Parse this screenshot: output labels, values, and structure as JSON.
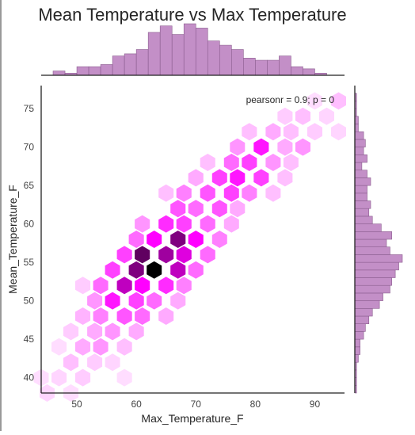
{
  "chart_data": {
    "type": "hexbin",
    "title": "Mean Temperature vs Max Temperature",
    "xlabel": "Max_Temperature_F",
    "ylabel": "Mean_Temperature_F",
    "xlim": [
      44,
      95
    ],
    "ylim": [
      38,
      78
    ],
    "xticks": [
      50,
      60,
      70,
      80,
      90
    ],
    "yticks": [
      40,
      45,
      50,
      55,
      60,
      65,
      70,
      75
    ],
    "annotation": "pearsonr = 0.9; p = 0",
    "colors": {
      "hex_base": "#ff00ff",
      "hex_dark": "#000000",
      "marginal": "#c38fc7",
      "marginal_edge": "#8a5c8e"
    },
    "hexbins": [
      {
        "x": 45,
        "y": 38,
        "c": 0.1
      },
      {
        "x": 49,
        "y": 38,
        "c": 0.08
      },
      {
        "x": 44,
        "y": 40,
        "c": 0.08
      },
      {
        "x": 47,
        "y": 40,
        "c": 0.1
      },
      {
        "x": 51,
        "y": 40,
        "c": 0.12
      },
      {
        "x": 49,
        "y": 42,
        "c": 0.15
      },
      {
        "x": 53,
        "y": 42,
        "c": 0.12
      },
      {
        "x": 56,
        "y": 42,
        "c": 0.1
      },
      {
        "x": 51,
        "y": 44,
        "c": 0.2
      },
      {
        "x": 54,
        "y": 44,
        "c": 0.25
      },
      {
        "x": 58,
        "y": 44,
        "c": 0.15
      },
      {
        "x": 49,
        "y": 46,
        "c": 0.12
      },
      {
        "x": 53,
        "y": 46,
        "c": 0.2
      },
      {
        "x": 56,
        "y": 46,
        "c": 0.25
      },
      {
        "x": 60,
        "y": 46,
        "c": 0.2
      },
      {
        "x": 51,
        "y": 48,
        "c": 0.18
      },
      {
        "x": 54,
        "y": 48,
        "c": 0.3
      },
      {
        "x": 58,
        "y": 48,
        "c": 0.4
      },
      {
        "x": 61,
        "y": 48,
        "c": 0.35
      },
      {
        "x": 65,
        "y": 48,
        "c": 0.2
      },
      {
        "x": 53,
        "y": 50,
        "c": 0.25
      },
      {
        "x": 56,
        "y": 50,
        "c": 0.55
      },
      {
        "x": 60,
        "y": 50,
        "c": 0.45
      },
      {
        "x": 63,
        "y": 50,
        "c": 0.35
      },
      {
        "x": 67,
        "y": 50,
        "c": 0.2
      },
      {
        "x": 54,
        "y": 52,
        "c": 0.35
      },
      {
        "x": 58,
        "y": 52,
        "c": 0.7
      },
      {
        "x": 61,
        "y": 52,
        "c": 0.6
      },
      {
        "x": 65,
        "y": 52,
        "c": 0.5
      },
      {
        "x": 68,
        "y": 52,
        "c": 0.3
      },
      {
        "x": 56,
        "y": 54,
        "c": 0.45
      },
      {
        "x": 60,
        "y": 54,
        "c": 0.8
      },
      {
        "x": 63,
        "y": 54,
        "c": 1.0
      },
      {
        "x": 67,
        "y": 54,
        "c": 0.7
      },
      {
        "x": 70,
        "y": 54,
        "c": 0.35
      },
      {
        "x": 58,
        "y": 56,
        "c": 0.45
      },
      {
        "x": 61,
        "y": 56,
        "c": 0.85
      },
      {
        "x": 65,
        "y": 56,
        "c": 0.75
      },
      {
        "x": 68,
        "y": 56,
        "c": 0.65
      },
      {
        "x": 72,
        "y": 56,
        "c": 0.35
      },
      {
        "x": 60,
        "y": 58,
        "c": 0.35
      },
      {
        "x": 63,
        "y": 58,
        "c": 0.6
      },
      {
        "x": 67,
        "y": 58,
        "c": 0.8
      },
      {
        "x": 70,
        "y": 58,
        "c": 0.6
      },
      {
        "x": 74,
        "y": 58,
        "c": 0.3
      },
      {
        "x": 61,
        "y": 60,
        "c": 0.25
      },
      {
        "x": 65,
        "y": 60,
        "c": 0.5
      },
      {
        "x": 68,
        "y": 60,
        "c": 0.45
      },
      {
        "x": 72,
        "y": 60,
        "c": 0.35
      },
      {
        "x": 76,
        "y": 60,
        "c": 0.2
      },
      {
        "x": 67,
        "y": 62,
        "c": 0.4
      },
      {
        "x": 70,
        "y": 62,
        "c": 0.35
      },
      {
        "x": 74,
        "y": 62,
        "c": 0.4
      },
      {
        "x": 77,
        "y": 62,
        "c": 0.2
      },
      {
        "x": 68,
        "y": 64,
        "c": 0.3
      },
      {
        "x": 72,
        "y": 64,
        "c": 0.4
      },
      {
        "x": 76,
        "y": 64,
        "c": 0.45
      },
      {
        "x": 79,
        "y": 64,
        "c": 0.3
      },
      {
        "x": 83,
        "y": 64,
        "c": 0.15
      },
      {
        "x": 70,
        "y": 66,
        "c": 0.2
      },
      {
        "x": 74,
        "y": 66,
        "c": 0.45
      },
      {
        "x": 77,
        "y": 66,
        "c": 0.55
      },
      {
        "x": 81,
        "y": 66,
        "c": 0.45
      },
      {
        "x": 85,
        "y": 66,
        "c": 0.15
      },
      {
        "x": 76,
        "y": 68,
        "c": 0.35
      },
      {
        "x": 79,
        "y": 68,
        "c": 0.45
      },
      {
        "x": 83,
        "y": 68,
        "c": 0.25
      },
      {
        "x": 86,
        "y": 68,
        "c": 0.15
      },
      {
        "x": 77,
        "y": 70,
        "c": 0.25
      },
      {
        "x": 81,
        "y": 70,
        "c": 0.55
      },
      {
        "x": 85,
        "y": 70,
        "c": 0.2
      },
      {
        "x": 88,
        "y": 70,
        "c": 0.25
      },
      {
        "x": 79,
        "y": 72,
        "c": 0.15
      },
      {
        "x": 83,
        "y": 72,
        "c": 0.2
      },
      {
        "x": 86,
        "y": 72,
        "c": 0.15
      },
      {
        "x": 90,
        "y": 72,
        "c": 0.12
      },
      {
        "x": 85,
        "y": 74,
        "c": 0.12
      },
      {
        "x": 88,
        "y": 74,
        "c": 0.15
      },
      {
        "x": 92,
        "y": 74,
        "c": 0.1
      },
      {
        "x": 90,
        "y": 76,
        "c": 0.08
      },
      {
        "x": 94,
        "y": 76,
        "c": 0.15
      },
      {
        "x": 94,
        "y": 72,
        "c": 0.1
      },
      {
        "x": 72,
        "y": 68,
        "c": 0.15
      },
      {
        "x": 65,
        "y": 64,
        "c": 0.15
      },
      {
        "x": 47,
        "y": 44,
        "c": 0.08
      },
      {
        "x": 51,
        "y": 52,
        "c": 0.12
      },
      {
        "x": 58,
        "y": 40,
        "c": 0.08
      }
    ],
    "marginal_x": {
      "bin_starts": [
        46,
        48,
        50,
        52,
        54,
        56,
        58,
        60,
        62,
        64,
        66,
        68,
        70,
        72,
        74,
        76,
        78,
        80,
        82,
        84,
        86,
        88,
        90
      ],
      "bin_width": 2,
      "values": [
        2,
        1,
        4,
        4,
        5,
        9,
        10,
        12,
        20,
        23,
        19,
        24,
        22,
        16,
        14,
        12,
        8,
        7,
        7,
        9,
        4,
        3,
        1
      ]
    },
    "marginal_y": {
      "bin_starts": [
        38,
        39,
        40,
        41,
        42,
        43,
        44,
        45,
        46,
        47,
        48,
        49,
        50,
        51,
        52,
        53,
        54,
        55,
        56,
        57,
        58,
        59,
        60,
        61,
        62,
        63,
        64,
        65,
        66,
        67,
        68,
        69,
        70,
        71,
        72,
        73,
        74,
        75,
        76
      ],
      "bin_width": 1,
      "values": [
        1,
        1,
        1,
        1,
        2,
        3,
        3,
        5,
        6,
        8,
        10,
        14,
        16,
        20,
        21,
        23,
        25,
        27,
        20,
        18,
        21,
        15,
        10,
        8,
        9,
        7,
        7,
        9,
        7,
        4,
        7,
        5,
        6,
        5,
        2,
        2,
        1,
        1,
        1
      ]
    }
  }
}
